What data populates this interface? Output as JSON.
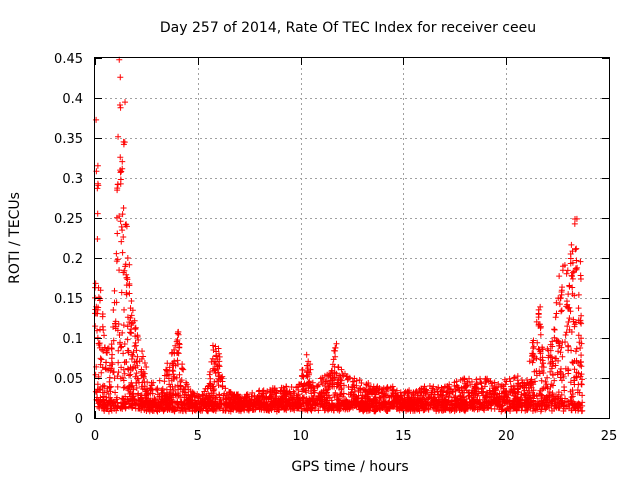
{
  "chart_data": {
    "type": "scatter",
    "title": "Day 257 of 2014, Rate Of TEC Index for receiver ceeu",
    "xlabel": "GPS time / hours",
    "ylabel": "ROTI / TECUs",
    "xlim": [
      0,
      25
    ],
    "ylim": [
      0,
      0.45
    ],
    "xticks": [
      0,
      5,
      10,
      15,
      20,
      25
    ],
    "xtick_labels": [
      "0",
      "5",
      "10",
      "15",
      "20",
      "25"
    ],
    "yticks": [
      0,
      0.05,
      0.1,
      0.15,
      0.2,
      0.25,
      0.3,
      0.35,
      0.4,
      0.45
    ],
    "ytick_labels": [
      "0",
      "0.05",
      "0.1",
      "0.15",
      "0.2",
      "0.25",
      "0.3",
      "0.35",
      "0.4",
      "0.45"
    ],
    "grid": true,
    "marker": "+",
    "series_color": "#ff0000",
    "envelope": {
      "hours": [
        0,
        0.1,
        0.2,
        0.4,
        0.6,
        0.8,
        1.0,
        1.1,
        1.2,
        1.3,
        1.4,
        1.5,
        1.6,
        1.8,
        2.0,
        2.3,
        2.6,
        3.0,
        3.4,
        3.8,
        4.0,
        4.2,
        4.5,
        5.0,
        5.5,
        5.8,
        6.0,
        6.3,
        6.8,
        7.5,
        8.0,
        9.0,
        9.5,
        10.0,
        10.3,
        10.6,
        11.0,
        11.5,
        11.7,
        12.0,
        12.5,
        13.0,
        13.5,
        14.0,
        14.5,
        15.0,
        15.5,
        16.0,
        16.5,
        17.0,
        17.5,
        18.0,
        18.5,
        19.0,
        19.5,
        20.0,
        20.5,
        21.0,
        21.3,
        21.6,
        21.9,
        22.2,
        22.5,
        22.7,
        23.0,
        23.2,
        23.4,
        23.6,
        23.7
      ],
      "roti_max": [
        0.17,
        0.38,
        0.16,
        0.13,
        0.1,
        0.09,
        0.2,
        0.33,
        0.45,
        0.34,
        0.43,
        0.27,
        0.2,
        0.16,
        0.12,
        0.09,
        0.05,
        0.04,
        0.06,
        0.09,
        0.11,
        0.08,
        0.04,
        0.03,
        0.04,
        0.1,
        0.09,
        0.04,
        0.03,
        0.03,
        0.035,
        0.04,
        0.04,
        0.05,
        0.09,
        0.05,
        0.05,
        0.06,
        0.1,
        0.06,
        0.05,
        0.05,
        0.04,
        0.04,
        0.04,
        0.035,
        0.035,
        0.04,
        0.04,
        0.04,
        0.045,
        0.05,
        0.05,
        0.05,
        0.05,
        0.06,
        0.06,
        0.05,
        0.1,
        0.14,
        0.08,
        0.1,
        0.15,
        0.23,
        0.19,
        0.22,
        0.26,
        0.2,
        0.05
      ]
    }
  }
}
